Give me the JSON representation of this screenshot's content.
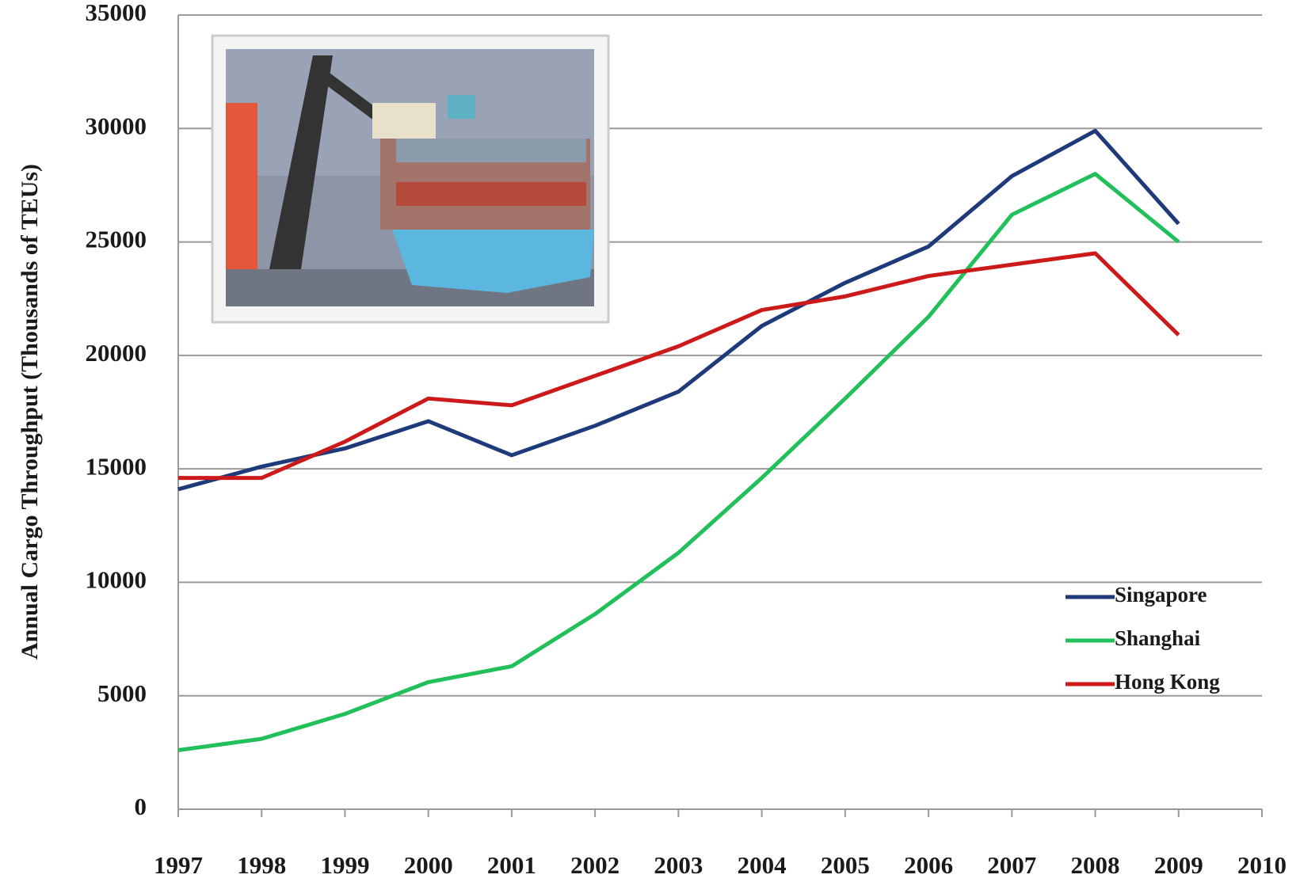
{
  "chart_data": {
    "type": "line",
    "y_label": "Annual Cargo Throughput (Thousands of TEUs)",
    "x": [
      1997,
      1998,
      1999,
      2000,
      2001,
      2002,
      2003,
      2004,
      2005,
      2006,
      2007,
      2008,
      2009
    ],
    "series": [
      {
        "name": "Singapore",
        "color": "#1f3a7a",
        "values": [
          14100,
          15100,
          15900,
          17100,
          15600,
          16900,
          18400,
          21300,
          23200,
          24800,
          27900,
          29900,
          25800
        ]
      },
      {
        "name": "Shanghai",
        "color": "#22c05a",
        "values": [
          2600,
          3100,
          4200,
          5600,
          6300,
          8600,
          11300,
          14600,
          18100,
          21700,
          26200,
          28000,
          25000
        ]
      },
      {
        "name": "Hong Kong",
        "color": "#cc1a1a",
        "values": [
          14600,
          14600,
          16200,
          18100,
          17800,
          19100,
          20400,
          22000,
          22600,
          23500,
          24000,
          24500,
          20900
        ]
      }
    ],
    "xlim": [
      1997,
      2010
    ],
    "xticks": [
      1997,
      1998,
      1999,
      2000,
      2001,
      2002,
      2003,
      2004,
      2005,
      2006,
      2007,
      2008,
      2009,
      2010
    ],
    "ylim": [
      0,
      35000
    ],
    "yticks": [
      0,
      5000,
      10000,
      15000,
      20000,
      25000,
      30000,
      35000
    ],
    "grid": true,
    "legend": "right"
  }
}
